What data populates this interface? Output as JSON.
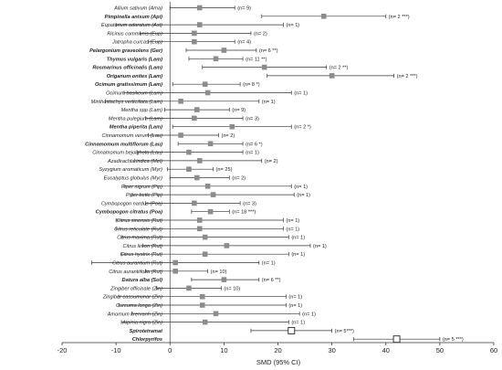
{
  "chart_data": {
    "type": "forest",
    "xlabel": "SMD (95% CI)",
    "xlim": [
      -20,
      60
    ],
    "x_ticks": [
      -20,
      -10,
      0,
      10,
      20,
      30,
      40,
      50,
      60
    ],
    "reference_line": 0,
    "colors": {
      "marker": "#8c8c8c",
      "line": "#333333",
      "axis": "#333333"
    },
    "rows": [
      {
        "label": "Allium sativum (Ama)",
        "bold": false,
        "est": 5.5,
        "lo": 0,
        "hi": 12,
        "note": "(n= 9)",
        "marker": "square"
      },
      {
        "label": "Pimpinella anisum (Api)",
        "bold": true,
        "est": 28.5,
        "lo": 17,
        "hi": 40,
        "note": "(n= 2 ***)",
        "marker": "square"
      },
      {
        "label": "Eupatorium odoratum (Ast)",
        "bold": false,
        "est": 5.5,
        "lo": -10,
        "hi": 21,
        "note": "(n= 1)",
        "marker": "square"
      },
      {
        "label": "Ricinus communis (Eup)",
        "bold": false,
        "est": 4.5,
        "lo": -5.5,
        "hi": 15,
        "note": "(n= 2)",
        "marker": "square"
      },
      {
        "label": "Jatropha curcas (Eup)",
        "bold": false,
        "est": 4.5,
        "lo": -4,
        "hi": 12,
        "note": "(n= 4)",
        "marker": "square"
      },
      {
        "label": "Pelargonium graveolens (Ger)",
        "bold": true,
        "est": 10,
        "lo": 3,
        "hi": 16,
        "note": "(n= 6 **)",
        "marker": "square"
      },
      {
        "label": "Thymus vulgaris (Lam)",
        "bold": true,
        "est": 8.5,
        "lo": 3.5,
        "hi": 13.5,
        "note": "(n= 11 **)",
        "marker": "square"
      },
      {
        "label": "Rosmarinus officinalis (Lam)",
        "bold": true,
        "est": 17.5,
        "lo": 6,
        "hi": 29,
        "note": "(n= 2 **)",
        "marker": "square"
      },
      {
        "label": "Origanum onites (Lam)",
        "bold": true,
        "est": 30,
        "lo": 18,
        "hi": 41.5,
        "note": "(n= 2 ***)",
        "marker": "square"
      },
      {
        "label": "Ocimum gratissimum (Lam)",
        "bold": true,
        "est": 6.5,
        "lo": 0.5,
        "hi": 13,
        "note": "(n= 8 *)",
        "marker": "square"
      },
      {
        "label": "Ocimum basilicum (Lam)",
        "bold": false,
        "est": 7,
        "lo": -8.5,
        "hi": 22.5,
        "note": "(n= 1)",
        "marker": "square"
      },
      {
        "label": "Minthostachys verticillata (Lam)",
        "bold": false,
        "est": 2,
        "lo": -12,
        "hi": 16.5,
        "note": "(n= 1)",
        "marker": "square"
      },
      {
        "label": "Mentha spp (Lam)",
        "bold": false,
        "est": 5,
        "lo": -1,
        "hi": 11,
        "note": "(n= 9)",
        "marker": "square"
      },
      {
        "label": "Mentha pulegium (Lam)",
        "bold": false,
        "est": 4.5,
        "lo": -4.5,
        "hi": 13.5,
        "note": "(n= 3)",
        "marker": "square"
      },
      {
        "label": "Mentha piperita (Lam)",
        "bold": true,
        "est": 11.5,
        "lo": 0.5,
        "hi": 22.5,
        "note": "(n= 2 *)",
        "marker": "square"
      },
      {
        "label": "Cinnamomum verum (Lau)",
        "bold": false,
        "est": 2,
        "lo": -4,
        "hi": 9,
        "note": "(n= 2)",
        "marker": "square"
      },
      {
        "label": "Cinnamomum multiflorum (Lau)",
        "bold": true,
        "est": 7.5,
        "lo": 1.5,
        "hi": 13.5,
        "note": "(n= 6 *)",
        "marker": "square"
      },
      {
        "label": "Cinnamomum bejolghota (Lau)",
        "bold": false,
        "est": 3.5,
        "lo": -6,
        "hi": 13.5,
        "note": "(n= 1)",
        "marker": "square"
      },
      {
        "label": "Azadirachta indica (Mel)",
        "bold": false,
        "est": 5.5,
        "lo": -6.5,
        "hi": 17,
        "note": "(n= 2)",
        "marker": "square"
      },
      {
        "label": "Syzygium aromaticum (Myr)",
        "bold": false,
        "est": 3.5,
        "lo": -0.5,
        "hi": 8,
        "note": "(n= 25)",
        "marker": "square"
      },
      {
        "label": "Eucalyptus globulus (Myr)",
        "bold": false,
        "est": 5,
        "lo": 0,
        "hi": 11,
        "note": "(n= 2)",
        "marker": "square"
      },
      {
        "label": "Piper nigrum (Pip)",
        "bold": false,
        "est": 7,
        "lo": -8.5,
        "hi": 22.5,
        "note": "(n= 1)",
        "marker": "square"
      },
      {
        "label": "Piper betle (Pip)",
        "bold": false,
        "est": 8,
        "lo": -7,
        "hi": 23,
        "note": "(n= 1)",
        "marker": "square"
      },
      {
        "label": "Cymbopogon nardus (Poa)",
        "bold": false,
        "est": 4.5,
        "lo": -4.5,
        "hi": 13,
        "note": "(n= 3)",
        "marker": "square"
      },
      {
        "label": "Cymbopogon citratus (Poa)",
        "bold": true,
        "est": 7.5,
        "lo": 4,
        "hi": 11,
        "note": "(n= 18 ***)",
        "marker": "square"
      },
      {
        "label": "Citrus sinensis (Rut)",
        "bold": false,
        "est": 5.5,
        "lo": -10,
        "hi": 21,
        "note": "(n= 1)",
        "marker": "square"
      },
      {
        "label": "Citrus reticulate (Rut)",
        "bold": false,
        "est": 5.5,
        "lo": -10,
        "hi": 21,
        "note": "(n= 1)",
        "marker": "square"
      },
      {
        "label": "Citrus maxima (Rut)",
        "bold": false,
        "est": 6.5,
        "lo": -9,
        "hi": 22,
        "note": "(n= 1)",
        "marker": "square"
      },
      {
        "label": "Citrus limon (Rut)",
        "bold": false,
        "est": 10.5,
        "lo": -5,
        "hi": 26,
        "note": "(n= 1)",
        "marker": "square"
      },
      {
        "label": "Citrus hystrix (Rut)",
        "bold": false,
        "est": 6.5,
        "lo": -9,
        "hi": 22,
        "note": "(n= 1)",
        "marker": "square"
      },
      {
        "label": "Citrus aurantium (Rut)",
        "bold": false,
        "est": 1,
        "lo": -14.5,
        "hi": 16.5,
        "note": "(n= 1)",
        "marker": "square"
      },
      {
        "label": "Citrus aurantiifolia (Rut)",
        "bold": false,
        "est": 1,
        "lo": -4.5,
        "hi": 7,
        "note": "(n= 10)",
        "marker": "square"
      },
      {
        "label": "Datura alba (Sol)",
        "bold": true,
        "est": 10,
        "lo": 4,
        "hi": 16.5,
        "note": "(n= 6 **)",
        "marker": "square"
      },
      {
        "label": "Zingiber officinale (Zin)",
        "bold": false,
        "est": 3.5,
        "lo": -2.5,
        "hi": 9.5,
        "note": "(n= 10)",
        "marker": "square"
      },
      {
        "label": "Zingiber cassumunar (Zin)",
        "bold": false,
        "est": 6,
        "lo": -9.5,
        "hi": 21.5,
        "note": "(n= 1)",
        "marker": "square"
      },
      {
        "label": "Curcuma longa (Zin)",
        "bold": false,
        "est": 6,
        "lo": -9.5,
        "hi": 21.5,
        "note": "(n= 1)",
        "marker": "square"
      },
      {
        "label": "Amomum krervanh (Zin)",
        "bold": false,
        "est": 8.5,
        "lo": -7,
        "hi": 24,
        "note": "(n= 1)",
        "marker": "square"
      },
      {
        "label": "Alpinia nigra (Zin)",
        "bold": false,
        "est": 6.5,
        "lo": -9,
        "hi": 22,
        "note": "(n= 1)",
        "marker": "square"
      },
      {
        "label": "Spirotetramat",
        "bold": true,
        "est": 22.5,
        "lo": 15,
        "hi": 30,
        "note": "(n= 5***)",
        "marker": "open-square"
      },
      {
        "label": "Chlorpyrifos",
        "bold": true,
        "est": 42,
        "lo": 34,
        "hi": 50,
        "note": "(n= 5 ***)",
        "marker": "open-square"
      }
    ]
  }
}
